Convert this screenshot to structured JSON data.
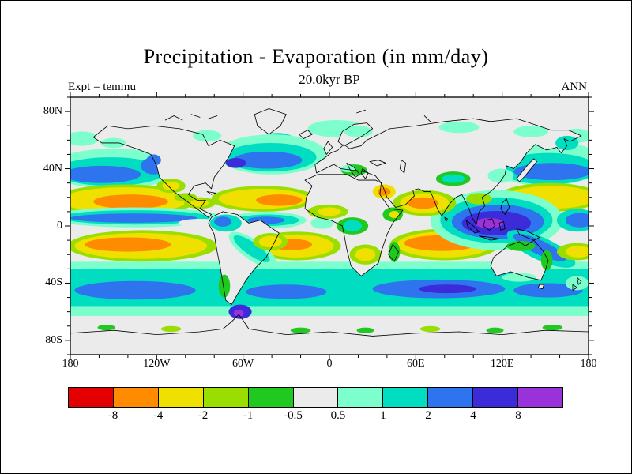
{
  "figure": {
    "title": "Precipitation - Evaporation (in mm/day)",
    "subtitle": "20.0kyr BP",
    "experiment": "Expt = temmu",
    "season": "ANN"
  },
  "palette": {
    "red": "#e40000",
    "orange": "#ff8c00",
    "yellow": "#f0e000",
    "ygreen": "#9ade00",
    "green": "#1fc91f",
    "neutral": "#ebebeb",
    "pcyan": "#7dffcd",
    "cyan": "#00ddc0",
    "blue": "#2d74ee",
    "dblue": "#3c2bd9",
    "purple": "#9932d8"
  },
  "colorbar": {
    "segment_keys": [
      "red",
      "orange",
      "yellow",
      "ygreen",
      "green",
      "neutral",
      "pcyan",
      "cyan",
      "blue",
      "dblue",
      "purple"
    ],
    "labels": [
      "-8",
      "-4",
      "-2",
      "-1",
      "-0.5",
      "0.5",
      "1",
      "2",
      "4",
      "8"
    ]
  },
  "axes": {
    "lat_labels": [
      "80N",
      "40N",
      "0",
      "40S",
      "80S"
    ],
    "lon_labels": [
      "180",
      "120W",
      "60W",
      "0",
      "60E",
      "120E",
      "180"
    ]
  },
  "chart_data": {
    "type": "heatmap",
    "subtype": "filled_contour_world_map",
    "title": "Precipitation - Evaporation (in mm/day)",
    "subtitle": "20.0kyr BP",
    "annotations": [
      "Expt = temmu",
      "ANN"
    ],
    "units": "mm/day",
    "projection": "equirectangular",
    "lon_range": [
      -180,
      180
    ],
    "lat_range": [
      -90,
      90
    ],
    "lon_tick_labels": [
      "180",
      "120W",
      "60W",
      "0",
      "60E",
      "120E",
      "180"
    ],
    "lat_tick_labels": [
      "80N",
      "40N",
      "0",
      "40S",
      "80S"
    ],
    "contour_levels": [
      -8,
      -4,
      -2,
      -1,
      -0.5,
      0.5,
      1,
      2,
      4,
      8
    ],
    "colorbar_labels": [
      "-8",
      "-4",
      "-2",
      "-1",
      "-0.5",
      "0.5",
      "1",
      "2",
      "4",
      "8"
    ],
    "colors": [
      "#e40000",
      "#ff8c00",
      "#f0e000",
      "#9ade00",
      "#1fc91f",
      "#ebebeb",
      "#7dffcd",
      "#00ddc0",
      "#2d74ee",
      "#3c2bd9",
      "#9932d8"
    ],
    "legend_position": "bottom",
    "grid": false,
    "features": [
      {
        "region": "subtropical NE Pacific (~10-25N)",
        "value_mm_day": "-4 to -8 (orange core in yellow band)"
      },
      {
        "region": "subtropical N Atlantic (~10-25N)",
        "value_mm_day": "-2 to -8"
      },
      {
        "region": "Arabian Sea / western India (~10-25N)",
        "value_mm_day": "-4 to -8"
      },
      {
        "region": "subtropical SE Pacific (~8-22S)",
        "value_mm_day": "-4 to -8"
      },
      {
        "region": "subtropical S Atlantic / E Brazil (~5-20S)",
        "value_mm_day": "-4 to -8"
      },
      {
        "region": "subtropical S Indian Ocean (~8-22S)",
        "value_mm_day": "-4 to -8"
      },
      {
        "region": "Pacific and Atlantic ITCZ (~0-8N)",
        "value_mm_day": "+2 to +4"
      },
      {
        "region": "Maritime Continent / W Pacific warm pool",
        "value_mm_day": "+4 to more than +8 (purple core)"
      },
      {
        "region": "N Pacific and N Atlantic storm tracks (35-55N)",
        "value_mm_day": "+1 to +4"
      },
      {
        "region": "Southern Ocean belt (30-60S)",
        "value_mm_day": "+0.5 to +4"
      },
      {
        "region": "Antarctic Peninsula / Drake Passage",
        "value_mm_day": "+4 to more than +8"
      },
      {
        "region": "continental interiors, Sahara, poles",
        "value_mm_day": "-0.5 to +0.5 (near zero)"
      }
    ]
  }
}
